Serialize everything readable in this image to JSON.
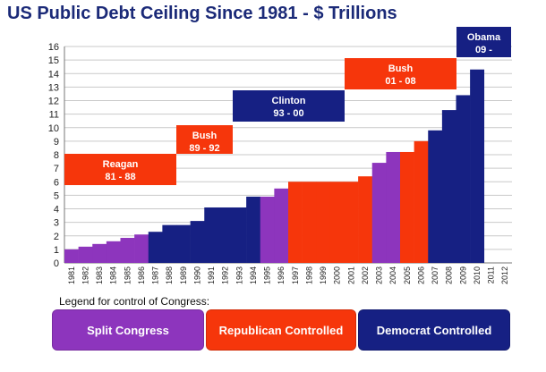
{
  "colors": {
    "split": "#8d35bd",
    "republican": "#f6360b",
    "democrat": "#162083",
    "title": "#1b2a78"
  },
  "chart_data": {
    "type": "bar",
    "title": "US Public Debt Ceiling Since 1981 - $ Trillions",
    "ylim": [
      0,
      16
    ],
    "yticks": [
      0,
      1,
      2,
      3,
      4,
      5,
      6,
      7,
      8,
      9,
      10,
      11,
      12,
      13,
      14,
      15,
      16
    ],
    "categories": [
      "1981",
      "1982",
      "1983",
      "1984",
      "1985",
      "1986",
      "1987",
      "1988",
      "1989",
      "1990",
      "1991",
      "1992",
      "1993",
      "1994",
      "1995",
      "1996",
      "1997",
      "1998",
      "1999",
      "2000",
      "2001",
      "2002",
      "2003",
      "2004",
      "2005",
      "2006",
      "2007",
      "2008",
      "2009",
      "2010",
      "2011",
      "2012"
    ],
    "values": [
      1.0,
      1.2,
      1.4,
      1.6,
      1.85,
      2.1,
      2.3,
      2.8,
      2.8,
      3.1,
      4.1,
      4.1,
      4.1,
      4.9,
      4.9,
      5.5,
      6.0,
      6.0,
      6.0,
      6.0,
      6.0,
      6.4,
      7.4,
      8.2,
      8.2,
      9.0,
      9.8,
      11.3,
      12.4,
      14.3,
      null,
      null
    ],
    "control": [
      "split",
      "split",
      "split",
      "split",
      "split",
      "split",
      "democrat",
      "democrat",
      "democrat",
      "democrat",
      "democrat",
      "democrat",
      "democrat",
      "democrat",
      "split",
      "split",
      "republican",
      "republican",
      "republican",
      "republican",
      "republican",
      "republican",
      "split",
      "split",
      "republican",
      "republican",
      "democrat",
      "democrat",
      "democrat",
      "democrat",
      "",
      ""
    ],
    "grid": true,
    "presidencies": [
      {
        "name": "Reagan",
        "term": "81 - 88",
        "color": "republican"
      },
      {
        "name": "Bush",
        "term": "89 - 92",
        "color": "republican"
      },
      {
        "name": "Clinton",
        "term": "93 - 00",
        "color": "democrat"
      },
      {
        "name": "Bush",
        "term": "01 - 08",
        "color": "republican"
      },
      {
        "name": "Obama",
        "term": "09 -",
        "color": "democrat"
      }
    ]
  },
  "legend": {
    "caption": "Legend for control of Congress:",
    "items": [
      {
        "label": "Split Congress",
        "key": "split"
      },
      {
        "label": "Republican Controlled",
        "key": "republican"
      },
      {
        "label": "Democrat Controlled",
        "key": "democrat"
      }
    ]
  }
}
